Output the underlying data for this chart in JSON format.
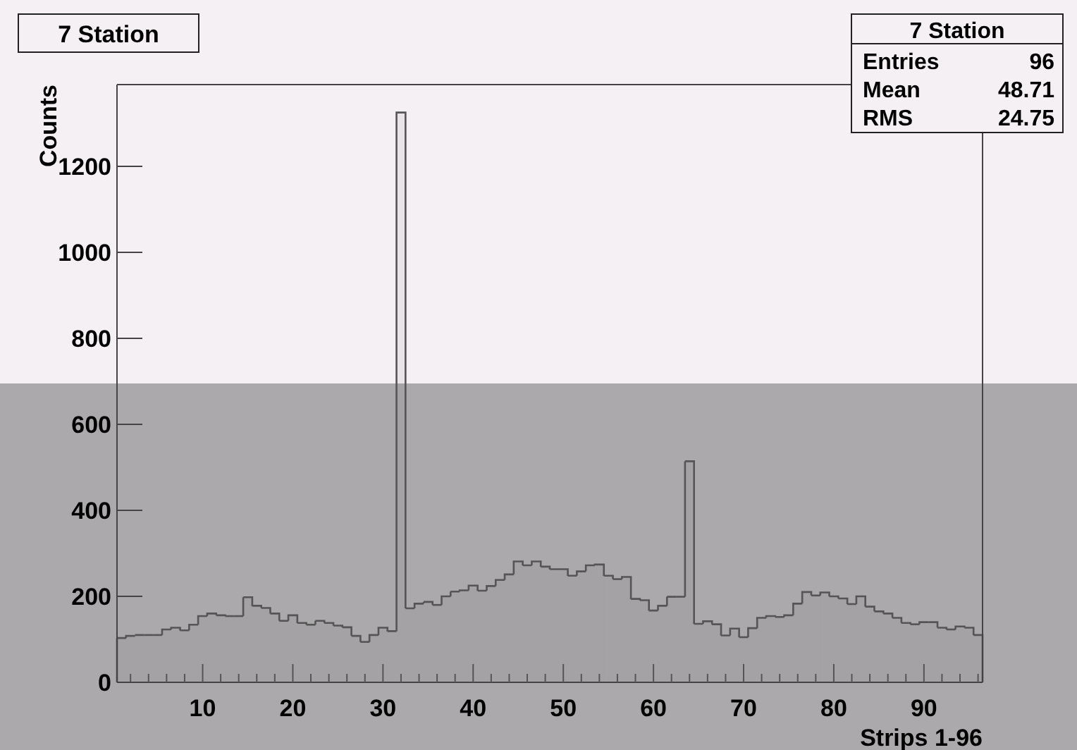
{
  "chart_data": {
    "type": "histogram",
    "title": "7 Station",
    "xlabel": "Strips 1-96",
    "ylabel": "Counts",
    "annotations": [
      "7 Station",
      "Entries",
      "96",
      "Mean",
      "48.71",
      "RMS",
      "24.75"
    ],
    "bins": [
      0.5,
      1.5,
      2.5,
      3.5,
      4.5,
      5.5,
      6.5,
      7.5,
      8.5,
      9.5,
      10.5,
      11.5,
      12.5,
      13.5,
      14.5,
      15.5,
      16.5,
      17.5,
      18.5,
      19.5,
      20.5,
      21.5,
      22.5,
      23.5,
      24.5,
      25.5,
      26.5,
      27.5,
      28.5,
      29.5,
      30.5,
      31.5,
      32.5,
      33.5,
      34.5,
      35.5,
      36.5,
      37.5,
      38.5,
      39.5,
      40.5,
      41.5,
      42.5,
      43.5,
      44.5,
      45.5,
      46.5,
      47.5,
      48.5,
      49.5,
      50.5,
      51.5,
      52.5,
      53.5,
      54.5,
      55.5,
      56.5,
      57.5,
      58.5,
      59.5,
      60.5,
      61.5,
      62.5,
      63.5,
      64.5,
      65.5,
      66.5,
      67.5,
      68.5,
      69.5,
      70.5,
      71.5,
      72.5,
      73.5,
      74.5,
      75.5,
      76.5,
      77.5,
      78.5,
      79.5,
      80.5,
      81.5,
      82.5,
      83.5,
      84.5,
      85.5,
      86.5,
      87.5,
      88.5,
      89.5,
      90.5,
      91.5,
      92.5,
      93.5,
      94.5,
      95.5,
      96.5
    ],
    "values": [
      103,
      108,
      110,
      110,
      110,
      123,
      127,
      121,
      134,
      154,
      160,
      156,
      154,
      154,
      198,
      178,
      173,
      160,
      143,
      156,
      138,
      134,
      143,
      138,
      132,
      128,
      108,
      94,
      110,
      127,
      119,
      1325,
      172,
      183,
      187,
      180,
      200,
      211,
      214,
      225,
      213,
      224,
      238,
      251,
      281,
      272,
      281,
      269,
      263,
      263,
      248,
      258,
      272,
      274,
      248,
      240,
      245,
      194,
      191,
      167,
      178,
      199,
      199,
      514,
      136,
      142,
      135,
      109,
      125,
      105,
      126,
      150,
      154,
      152,
      156,
      183,
      210,
      202,
      209,
      200,
      195,
      182,
      200,
      176,
      165,
      160,
      150,
      138,
      135,
      140,
      140,
      127,
      123,
      130,
      127,
      110
    ],
    "color": "#555555",
    "xlim": [
      0.5,
      96.5
    ],
    "ylim": [
      0,
      1390
    ],
    "xticks": [
      {
        "value": 2,
        "label": null
      },
      {
        "value": 4,
        "label": null
      },
      {
        "value": 6,
        "label": null
      },
      {
        "value": 8,
        "label": null
      },
      10,
      {
        "value": 12,
        "label": null
      },
      {
        "value": 14,
        "label": null
      },
      {
        "value": 16,
        "label": null
      },
      {
        "value": 18,
        "label": null
      },
      20,
      {
        "value": 22,
        "label": null
      },
      {
        "value": 24,
        "label": null
      },
      {
        "value": 26,
        "label": null
      },
      {
        "value": 28,
        "label": null
      },
      30,
      {
        "value": 32,
        "label": null
      },
      {
        "value": 34,
        "label": null
      },
      {
        "value": 36,
        "label": null
      },
      {
        "value": 38,
        "label": null
      },
      40,
      {
        "value": 42,
        "label": null
      },
      {
        "value": 44,
        "label": null
      },
      {
        "value": 46,
        "label": null
      },
      {
        "value": 48,
        "label": null
      },
      50,
      {
        "value": 52,
        "label": null
      },
      {
        "value": 54,
        "label": null
      },
      {
        "value": 56,
        "label": null
      },
      {
        "value": 58,
        "label": null
      },
      60,
      {
        "value": 62,
        "label": null
      },
      {
        "value": 64,
        "label": null
      },
      {
        "value": 66,
        "label": null
      },
      {
        "value": 68,
        "label": null
      },
      70,
      {
        "value": 72,
        "label": null
      },
      {
        "value": 74,
        "label": null
      },
      {
        "value": 76,
        "label": null
      },
      {
        "value": 78,
        "label": null
      },
      80,
      {
        "value": 82,
        "label": null
      },
      {
        "value": 84,
        "label": null
      },
      {
        "value": 86,
        "label": null
      },
      {
        "value": 88,
        "label": null
      },
      90,
      {
        "value": 92,
        "label": null
      },
      {
        "value": 94,
        "label": null
      },
      {
        "value": 96,
        "label": null
      }
    ],
    "yticks": [
      0,
      200,
      400,
      600,
      800,
      1000,
      1200
    ],
    "grid": false
  }
}
